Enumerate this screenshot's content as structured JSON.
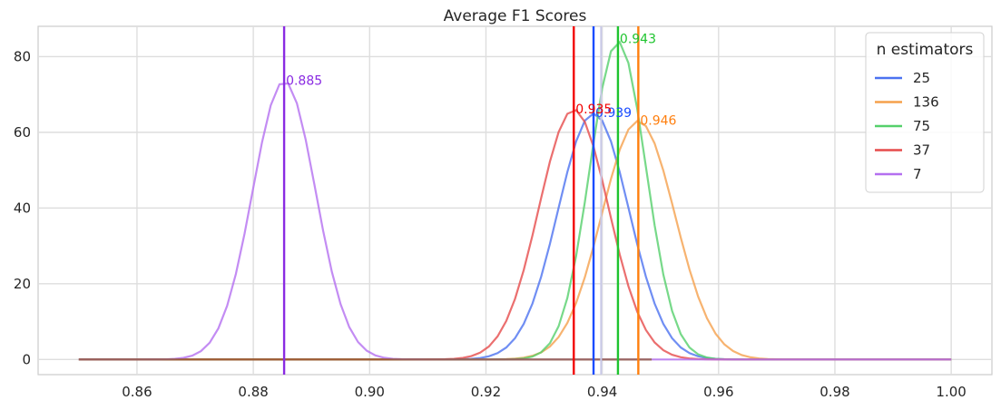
{
  "chart_data": {
    "type": "line",
    "title": "Average F1 Scores",
    "xlabel": "",
    "ylabel": "",
    "xlim": [
      0.843,
      1.007
    ],
    "ylim": [
      -4,
      88
    ],
    "x_ticks": [
      0.86,
      0.88,
      0.9,
      0.92,
      0.94,
      0.96,
      0.98,
      1.0
    ],
    "x_tick_labels": [
      "0.86",
      "0.88",
      "0.90",
      "0.92",
      "0.94",
      "0.96",
      "0.98",
      "1.00"
    ],
    "y_ticks": [
      0,
      20,
      40,
      60,
      80
    ],
    "y_tick_labels": [
      "0",
      "20",
      "40",
      "60",
      "80"
    ],
    "grid": true,
    "x_range": [
      0.85,
      1.0
    ],
    "legend": {
      "title": "n estimators",
      "placement": "top-right"
    },
    "series": [
      {
        "name": "25",
        "mean": 0.9385,
        "std": 0.0061,
        "peak": 65,
        "color": "#4c72f0",
        "fill_alpha": 0.8,
        "mean_color": "#1a4cff",
        "label": "0.939"
      },
      {
        "name": "136",
        "mean": 0.9462,
        "std": 0.0063,
        "peak": 63,
        "color": "#f5a04c",
        "fill_alpha": 0.8,
        "mean_color": "#ff7f0e",
        "label": "0.946"
      },
      {
        "name": "75",
        "mean": 0.9427,
        "std": 0.0048,
        "peak": 84,
        "color": "#55d06b",
        "fill_alpha": 0.8,
        "mean_color": "#1fc42f",
        "label": "0.943"
      },
      {
        "name": "37",
        "mean": 0.9351,
        "std": 0.006,
        "peak": 66,
        "color": "#e64b4b",
        "fill_alpha": 0.8,
        "mean_color": "#f20000",
        "label": "0.935"
      },
      {
        "name": "7",
        "mean": 0.8853,
        "std": 0.0054,
        "peak": 73.5,
        "color": "#b46ff0",
        "fill_alpha": 0.8,
        "mean_color": "#8a2be2",
        "label": "0.885"
      }
    ],
    "label_y": [
      65,
      63,
      84.5,
      66,
      73.5
    ],
    "extra_vertical_lines": [
      {
        "x": 0.9398,
        "color": "#c9c9e8"
      }
    ]
  }
}
